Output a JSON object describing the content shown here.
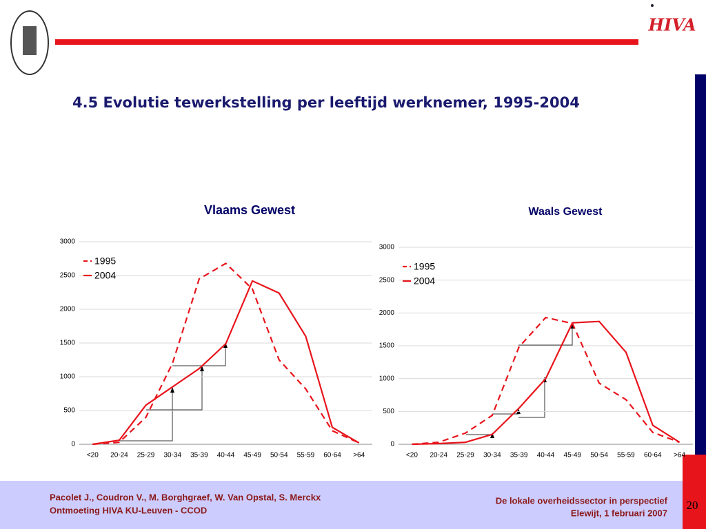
{
  "slide": {
    "title": "4.5 Evolutie tewerkstelling per leeftijd werknemer, 1995-2004",
    "logo_text": "HIVA",
    "footer_left": [
      "Pacolet J., Coudron V., M. Borghgraef, W. Van Opstal, S. Merckx",
      "Ontmoeting HIVA KU-Leuven - CCOD"
    ],
    "footer_right": [
      "De lokale overheidssector in perspectief",
      "Elewijt, 1 februari 2007"
    ],
    "page_number": "20"
  },
  "chart_data": [
    {
      "type": "line",
      "title": "Vlaams Gewest",
      "categories": [
        "<20",
        "20-24",
        "25-29",
        "30-34",
        "35-39",
        "40-44",
        "45-49",
        "50-54",
        "55-59",
        "60-64",
        ">64"
      ],
      "series": [
        {
          "name": "1995",
          "color": "#e8141b",
          "line_style": "dashed",
          "values": [
            0,
            30,
            400,
            1200,
            2450,
            2680,
            2300,
            1250,
            820,
            200,
            20
          ]
        },
        {
          "name": "2004",
          "color": "#e8141b",
          "line_style": "solid",
          "values": [
            0,
            60,
            580,
            850,
            1120,
            1490,
            2420,
            2240,
            1600,
            250,
            20
          ]
        }
      ],
      "ylim": [
        0,
        3000
      ],
      "yticks": [
        0,
        500,
        1000,
        1500,
        2000,
        2500,
        3000
      ],
      "grid": true,
      "legend": "top-left"
    },
    {
      "type": "line",
      "title": "Waals Gewest",
      "categories": [
        "<20",
        "20-24",
        "25-29",
        "30-34",
        "35-39",
        "40-44",
        "45-49",
        "50-54",
        "55-59",
        "60-64",
        ">64"
      ],
      "series": [
        {
          "name": "1995",
          "color": "#e8141b",
          "line_style": "dashed",
          "values": [
            0,
            30,
            170,
            440,
            1480,
            1930,
            1840,
            930,
            680,
            180,
            30
          ]
        },
        {
          "name": "2004",
          "color": "#e8141b",
          "line_style": "solid",
          "values": [
            0,
            10,
            30,
            150,
            550,
            1000,
            1850,
            1870,
            1400,
            290,
            30
          ]
        }
      ],
      "ylim": [
        0,
        3000
      ],
      "yticks": [
        0,
        500,
        1000,
        1500,
        2000,
        2500,
        3000
      ],
      "grid": true,
      "legend": "top-left"
    }
  ]
}
